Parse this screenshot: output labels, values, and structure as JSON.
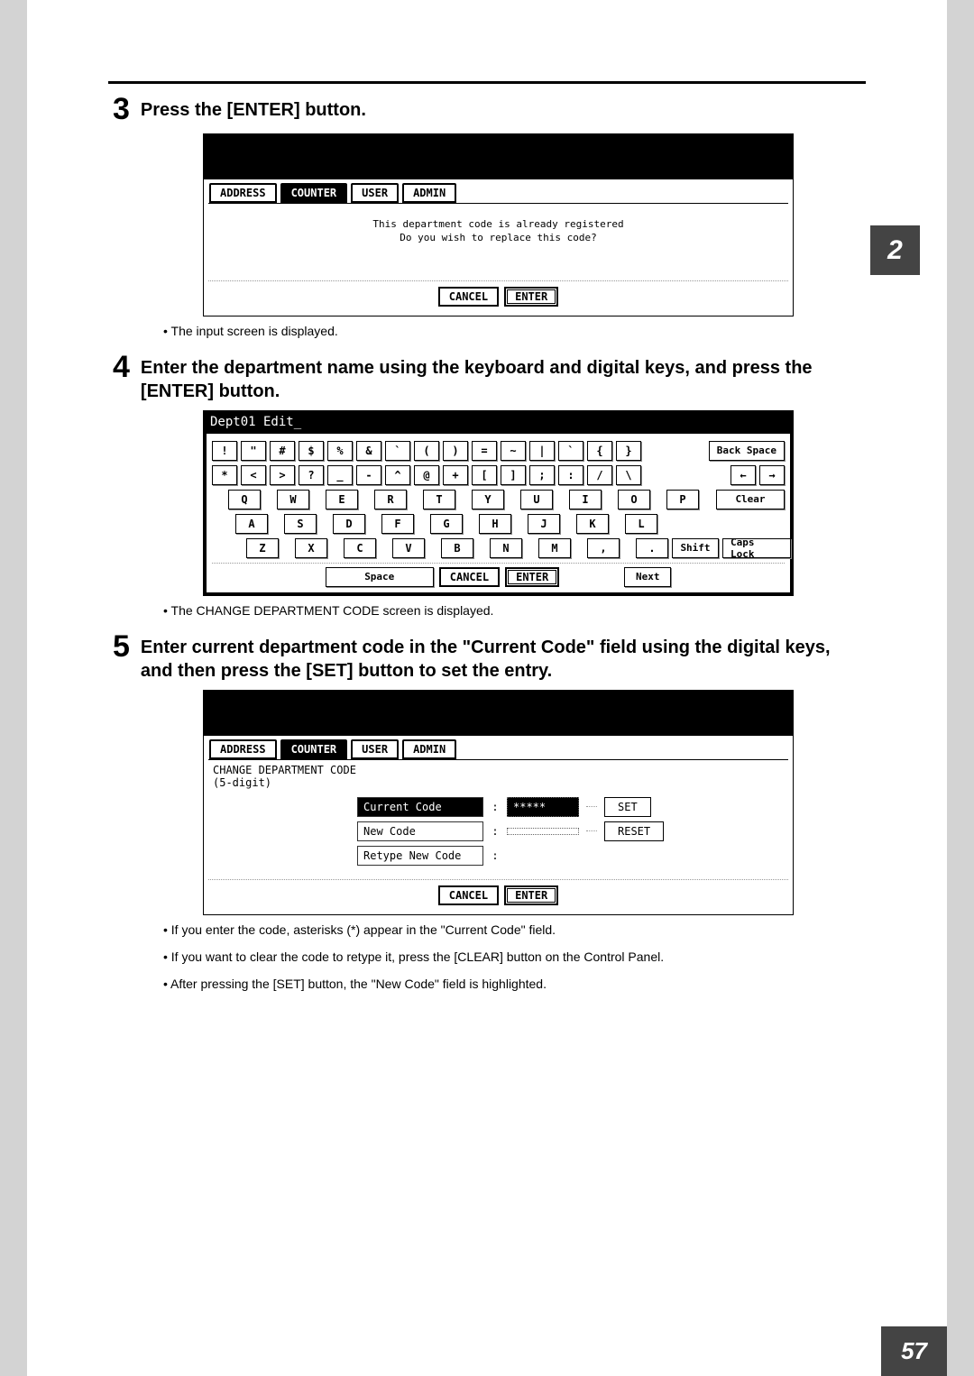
{
  "chapterTab": "2",
  "pageNumber": "57",
  "step3": {
    "num": "3",
    "text": "Press the [ENTER] button."
  },
  "step3_bullet": "The input screen is displayed.",
  "step4": {
    "num": "4",
    "text": "Enter the department name using the keyboard and digital keys, and press the [ENTER] button."
  },
  "step4_bullet": "The CHANGE DEPARTMENT CODE screen is displayed.",
  "step5": {
    "num": "5",
    "text": "Enter current department code in the \"Current Code\" field using the digital keys, and then press the [SET] button to set the entry."
  },
  "step5_bullets": [
    "If you enter the code, asterisks (*) appear in the \"Current Code\" field.",
    "If you want to clear the code to retype it, press the [CLEAR] button on the Control Panel.",
    "After pressing the [SET] button, the \"New Code\" field is highlighted."
  ],
  "tabs": {
    "address": "ADDRESS",
    "counter": "COUNTER",
    "user": "USER",
    "admin": "ADMIN"
  },
  "screen1": {
    "msg1": "This department code is already registered",
    "msg2": "Do you wish to replace this code?",
    "cancel": "CANCEL",
    "enter": "ENTER"
  },
  "keyboard": {
    "title": "Dept01 Edit_",
    "row1": [
      "!",
      "\"",
      "#",
      "$",
      "%",
      "&",
      "`",
      "(",
      ")",
      "=",
      "~",
      "|",
      "`",
      "{",
      "}"
    ],
    "row2": [
      "*",
      "<",
      ">",
      "?",
      "_",
      "-",
      "^",
      "@",
      "+",
      "[",
      "]",
      ";",
      ":",
      "/",
      "\\"
    ],
    "row3": [
      "Q",
      "W",
      "E",
      "R",
      "T",
      "Y",
      "U",
      "I",
      "O",
      "P"
    ],
    "row4": [
      "A",
      "S",
      "D",
      "F",
      "G",
      "H",
      "J",
      "K",
      "L"
    ],
    "row5": [
      "Z",
      "X",
      "C",
      "V",
      "B",
      "N",
      "M",
      ",",
      "."
    ],
    "backspace": "Back Space",
    "arrows": [
      "←",
      "→"
    ],
    "clear": "Clear",
    "shift": "Shift",
    "caps": "Caps Lock",
    "space": "Space",
    "cancel": "CANCEL",
    "enter": "ENTER",
    "next": "Next"
  },
  "screen3": {
    "heading": "CHANGE DEPARTMENT CODE",
    "sub": "(5-digit)",
    "currentLabel": "Current Code",
    "currentVal": "*****",
    "newLabel": "New Code",
    "retypeLabel": "Retype New Code",
    "set": "SET",
    "reset": "RESET",
    "cancel": "CANCEL",
    "enter": "ENTER"
  }
}
